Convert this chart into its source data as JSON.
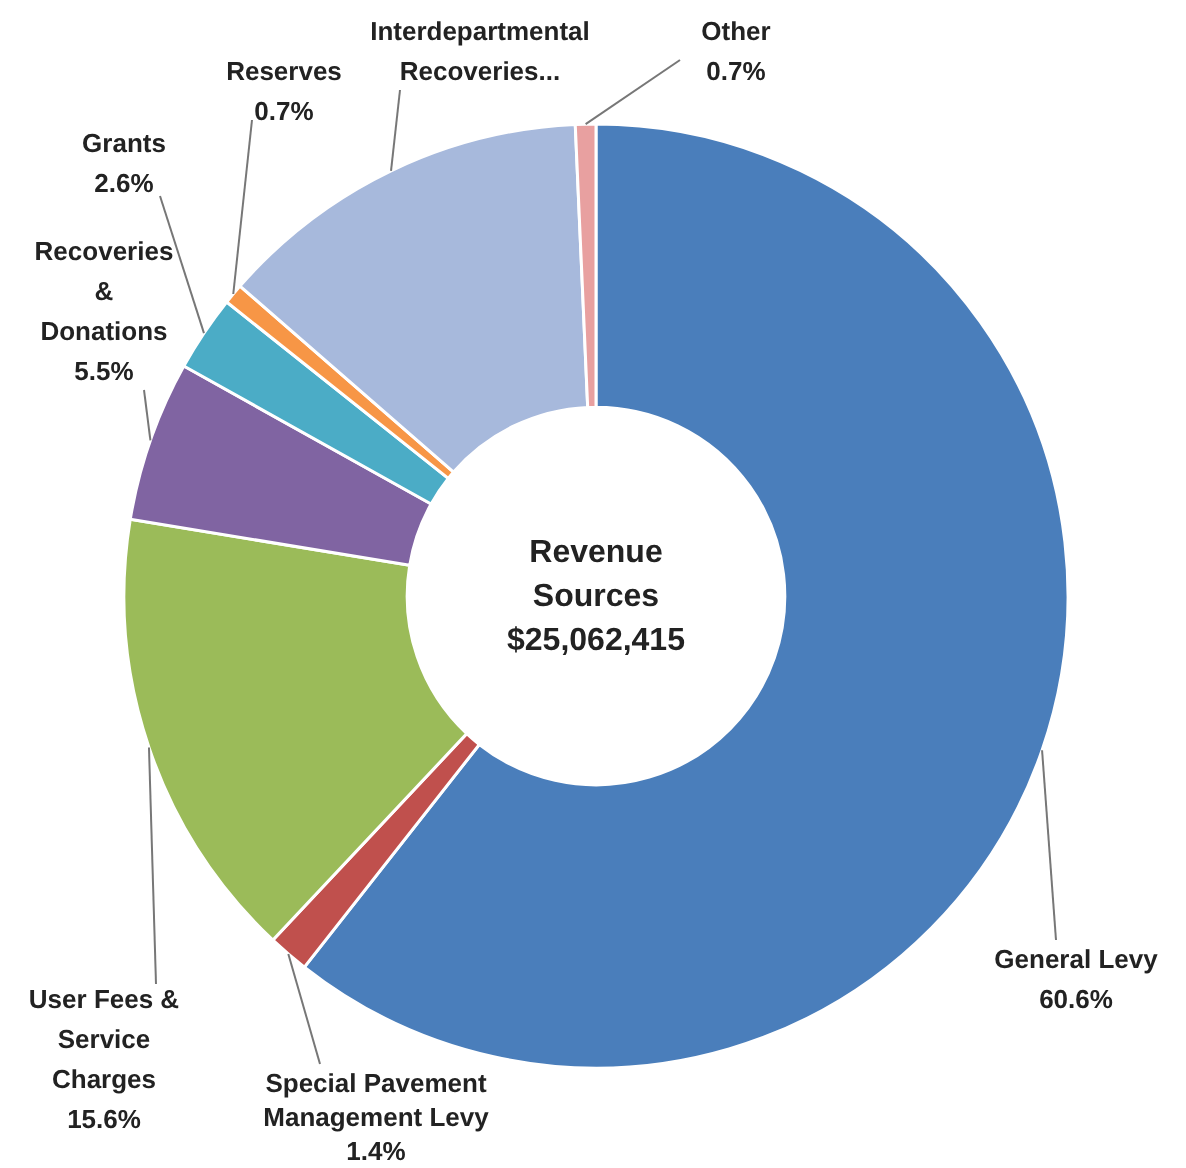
{
  "chart_data": {
    "type": "donut",
    "title": "Revenue Sources",
    "subtitle": "$25,062,415",
    "categories": [
      "General Levy",
      "Special Pavement Management Levy",
      "User Fees & Service Charges",
      "Recoveries & Donations",
      "Grants",
      "Reserves",
      "Interdepartmental Recoveries...",
      "Other"
    ],
    "values": [
      60.6,
      1.4,
      15.6,
      5.5,
      2.6,
      0.7,
      12.9,
      0.7
    ],
    "colors": [
      "#4a7ebb",
      "#c0504d",
      "#9bbb59",
      "#8064a2",
      "#4bacc6",
      "#f79646",
      "#a7b9dc",
      "#e8a0a0"
    ],
    "value_labels": [
      "60.6%",
      "1.4%",
      "15.6%",
      "5.5%",
      "2.6%",
      "0.7%",
      null,
      "0.7%"
    ]
  }
}
